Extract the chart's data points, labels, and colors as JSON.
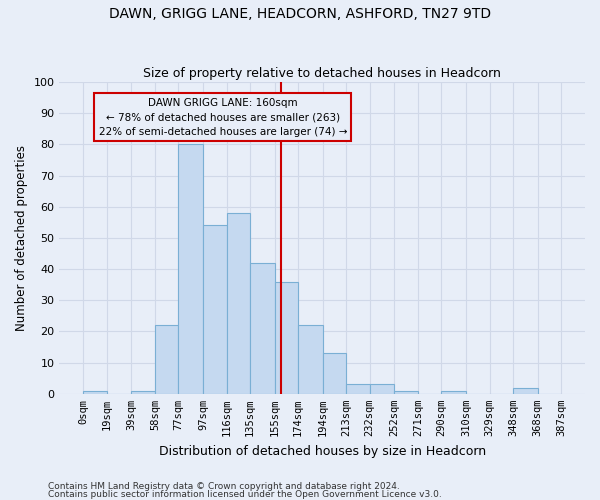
{
  "title": "DAWN, GRIGG LANE, HEADCORN, ASHFORD, TN27 9TD",
  "subtitle": "Size of property relative to detached houses in Headcorn",
  "xlabel": "Distribution of detached houses by size in Headcorn",
  "ylabel": "Number of detached properties",
  "bin_labels": [
    "0sqm",
    "19sqm",
    "39sqm",
    "58sqm",
    "77sqm",
    "97sqm",
    "116sqm",
    "135sqm",
    "155sqm",
    "174sqm",
    "194sqm",
    "213sqm",
    "232sqm",
    "252sqm",
    "271sqm",
    "290sqm",
    "310sqm",
    "329sqm",
    "348sqm",
    "368sqm",
    "387sqm"
  ],
  "bar_values": [
    1,
    0,
    1,
    22,
    80,
    54,
    58,
    42,
    36,
    22,
    13,
    3,
    3,
    1,
    0,
    1,
    0,
    0,
    2,
    0
  ],
  "bin_edges": [
    0,
    19,
    39,
    58,
    77,
    97,
    116,
    135,
    155,
    174,
    194,
    213,
    232,
    252,
    271,
    290,
    310,
    329,
    348,
    368,
    387
  ],
  "bar_color": "#c5d9f0",
  "bar_edgecolor": "#7aafd4",
  "vline_x": 160,
  "vline_color": "#cc0000",
  "annotation_text": "DAWN GRIGG LANE: 160sqm\n← 78% of detached houses are smaller (263)\n22% of semi-detached houses are larger (74) →",
  "annotation_box_edgecolor": "#cc0000",
  "ylim": [
    0,
    100
  ],
  "yticks": [
    0,
    10,
    20,
    30,
    40,
    50,
    60,
    70,
    80,
    90,
    100
  ],
  "grid_color": "#d0d8e8",
  "bg_color": "#e8eef8",
  "footer1": "Contains HM Land Registry data © Crown copyright and database right 2024.",
  "footer2": "Contains public sector information licensed under the Open Government Licence v3.0."
}
